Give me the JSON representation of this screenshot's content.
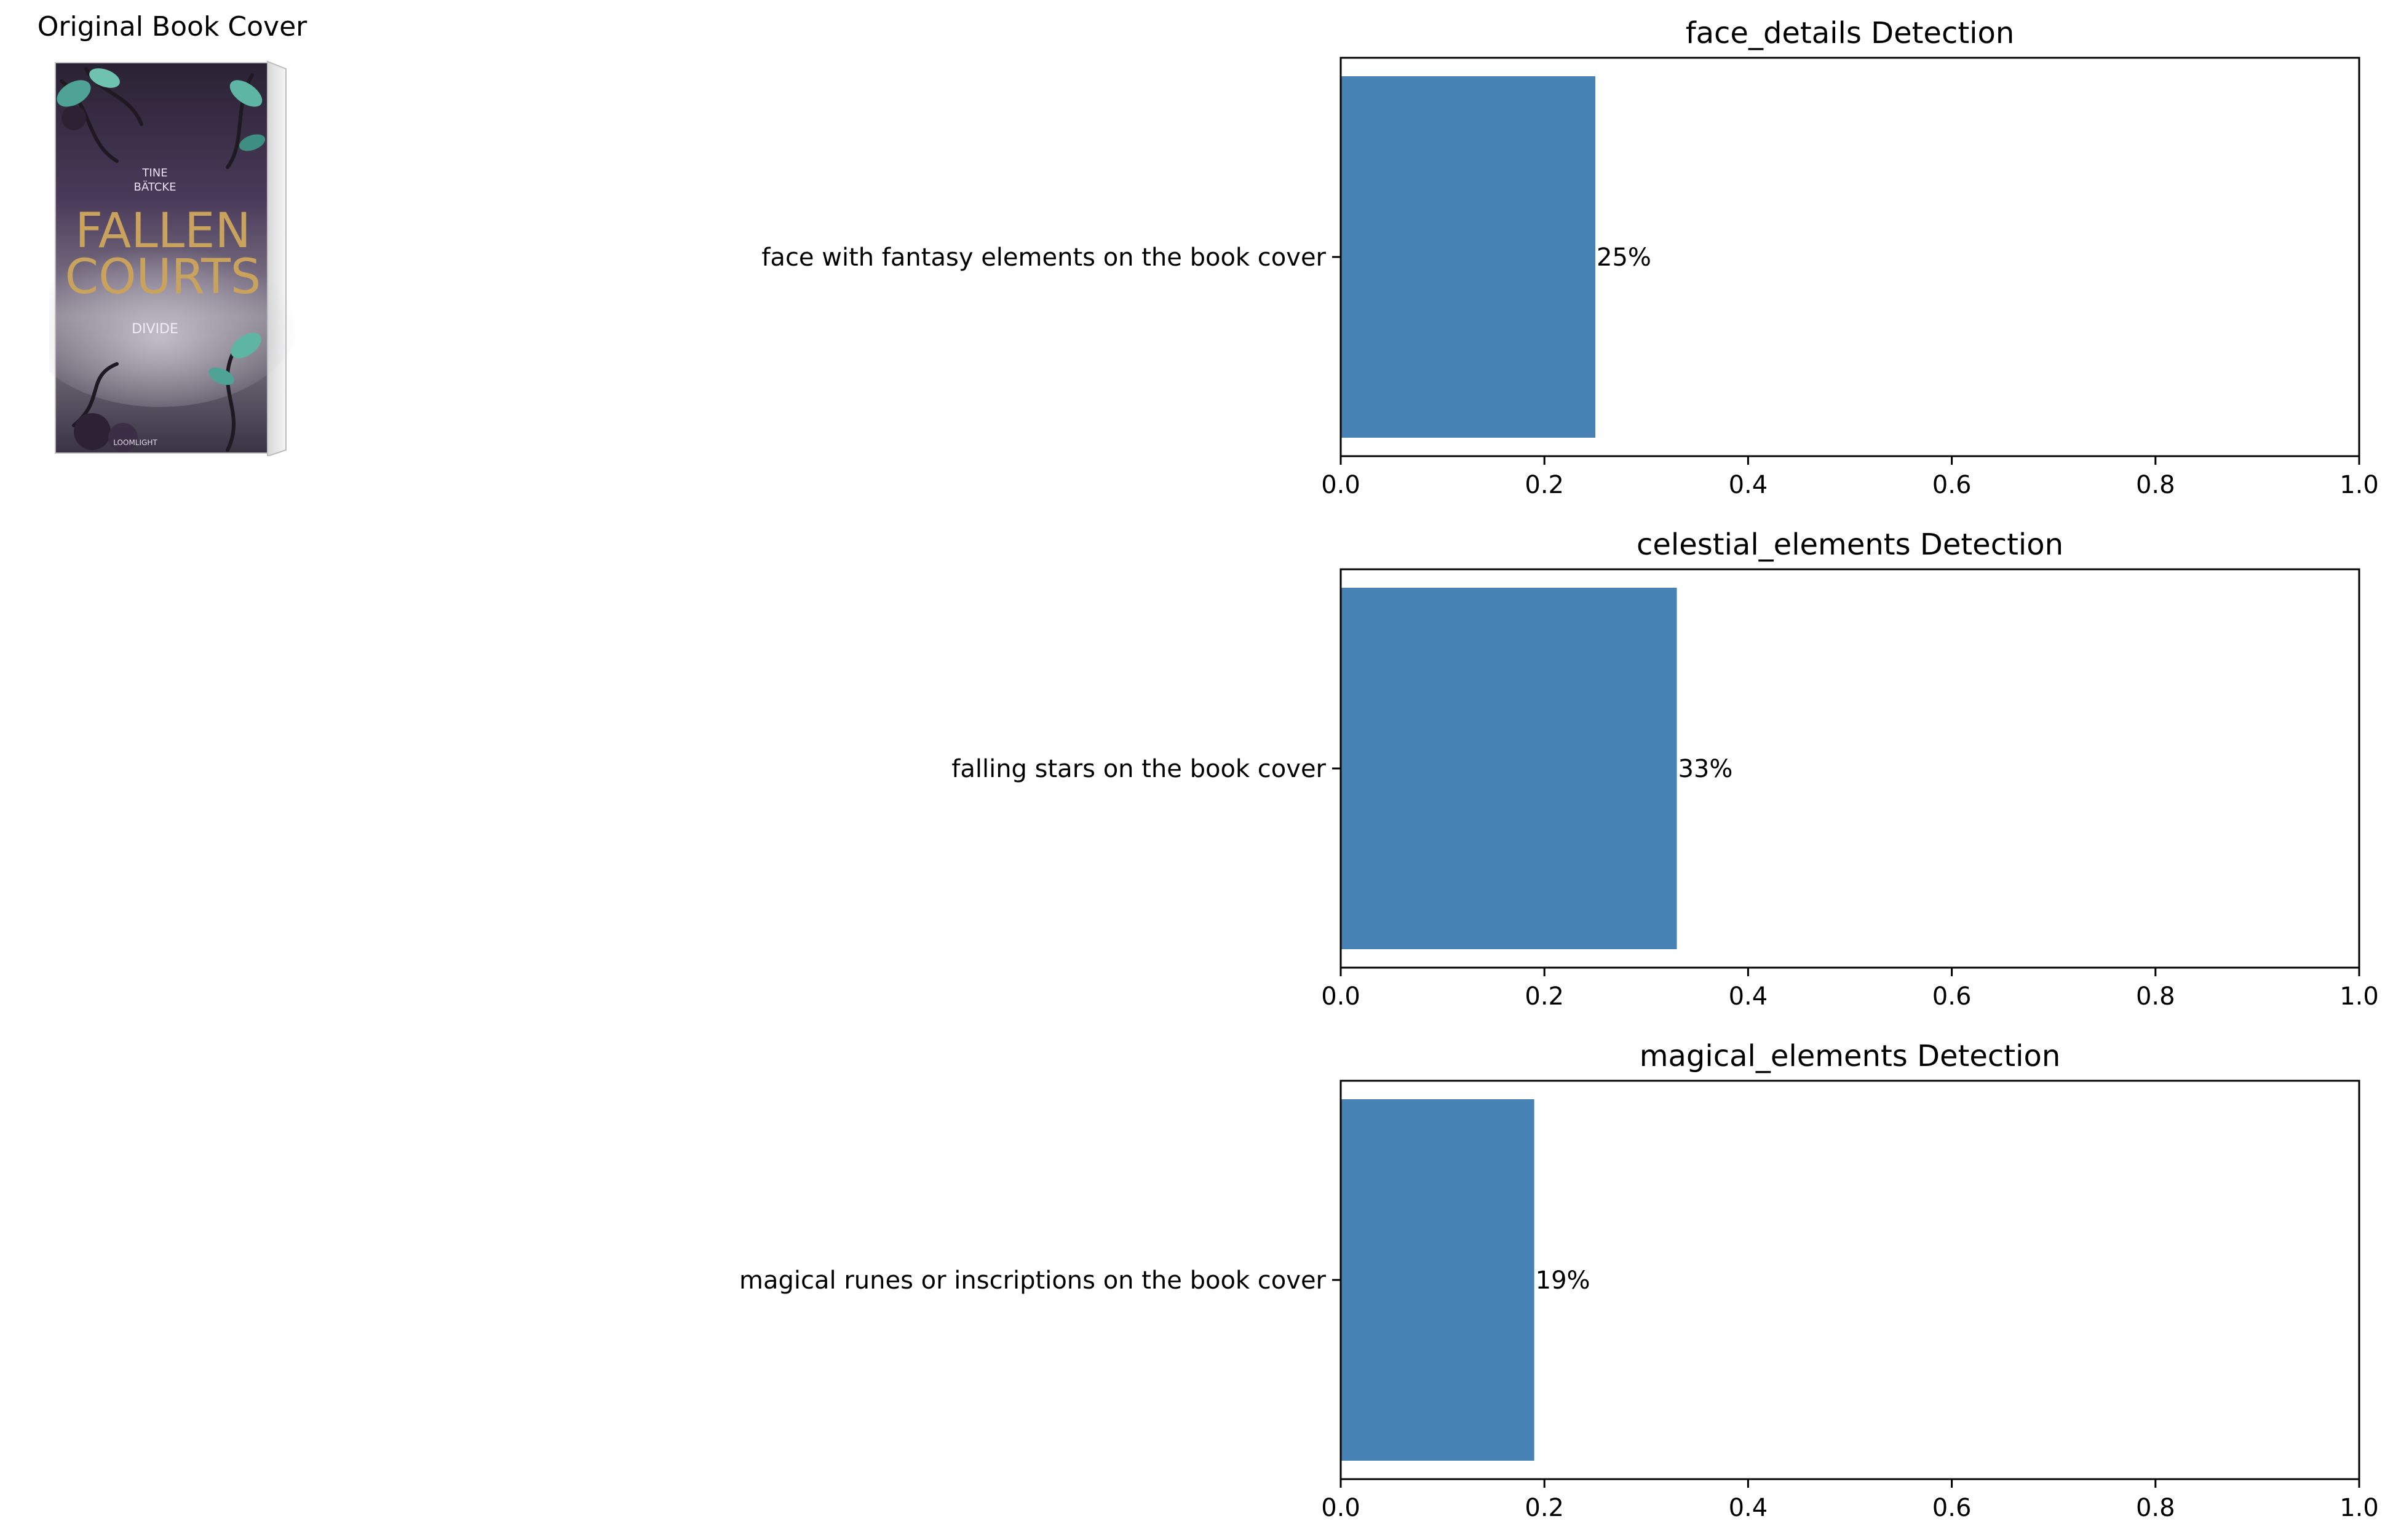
{
  "cover": {
    "title": "Original Book Cover",
    "author_first": "TINE",
    "author_last": "BÄTCKE",
    "book_title_line1": "FALLEN",
    "book_title_line2": "COURTS",
    "book_subtitle": "DIVIDE",
    "publisher": "LOOMLIGHT"
  },
  "colors": {
    "bar": "#4682b4",
    "axis": "#000000",
    "text": "#000000",
    "cover_dark": "#3b2c47",
    "cover_gold": "#c9a25e"
  },
  "chart_data": [
    {
      "type": "bar",
      "orientation": "horizontal",
      "title": "face_details Detection",
      "categories": [
        "face with fantasy elements on the book cover"
      ],
      "values": [
        0.25
      ],
      "data_labels": [
        "25%"
      ],
      "xlim": [
        0,
        1
      ],
      "xticks": [
        "0.0",
        "0.2",
        "0.4",
        "0.6",
        "0.8",
        "1.0"
      ],
      "grid": false
    },
    {
      "type": "bar",
      "orientation": "horizontal",
      "title": "celestial_elements Detection",
      "categories": [
        "falling stars on the book cover"
      ],
      "values": [
        0.33
      ],
      "data_labels": [
        "33%"
      ],
      "xlim": [
        0,
        1
      ],
      "xticks": [
        "0.0",
        "0.2",
        "0.4",
        "0.6",
        "0.8",
        "1.0"
      ],
      "grid": false
    },
    {
      "type": "bar",
      "orientation": "horizontal",
      "title": "magical_elements Detection",
      "categories": [
        "magical runes or inscriptions on the book cover"
      ],
      "values": [
        0.19
      ],
      "data_labels": [
        "19%"
      ],
      "xlim": [
        0,
        1
      ],
      "xticks": [
        "0.0",
        "0.2",
        "0.4",
        "0.6",
        "0.8",
        "1.0"
      ],
      "grid": false
    }
  ]
}
